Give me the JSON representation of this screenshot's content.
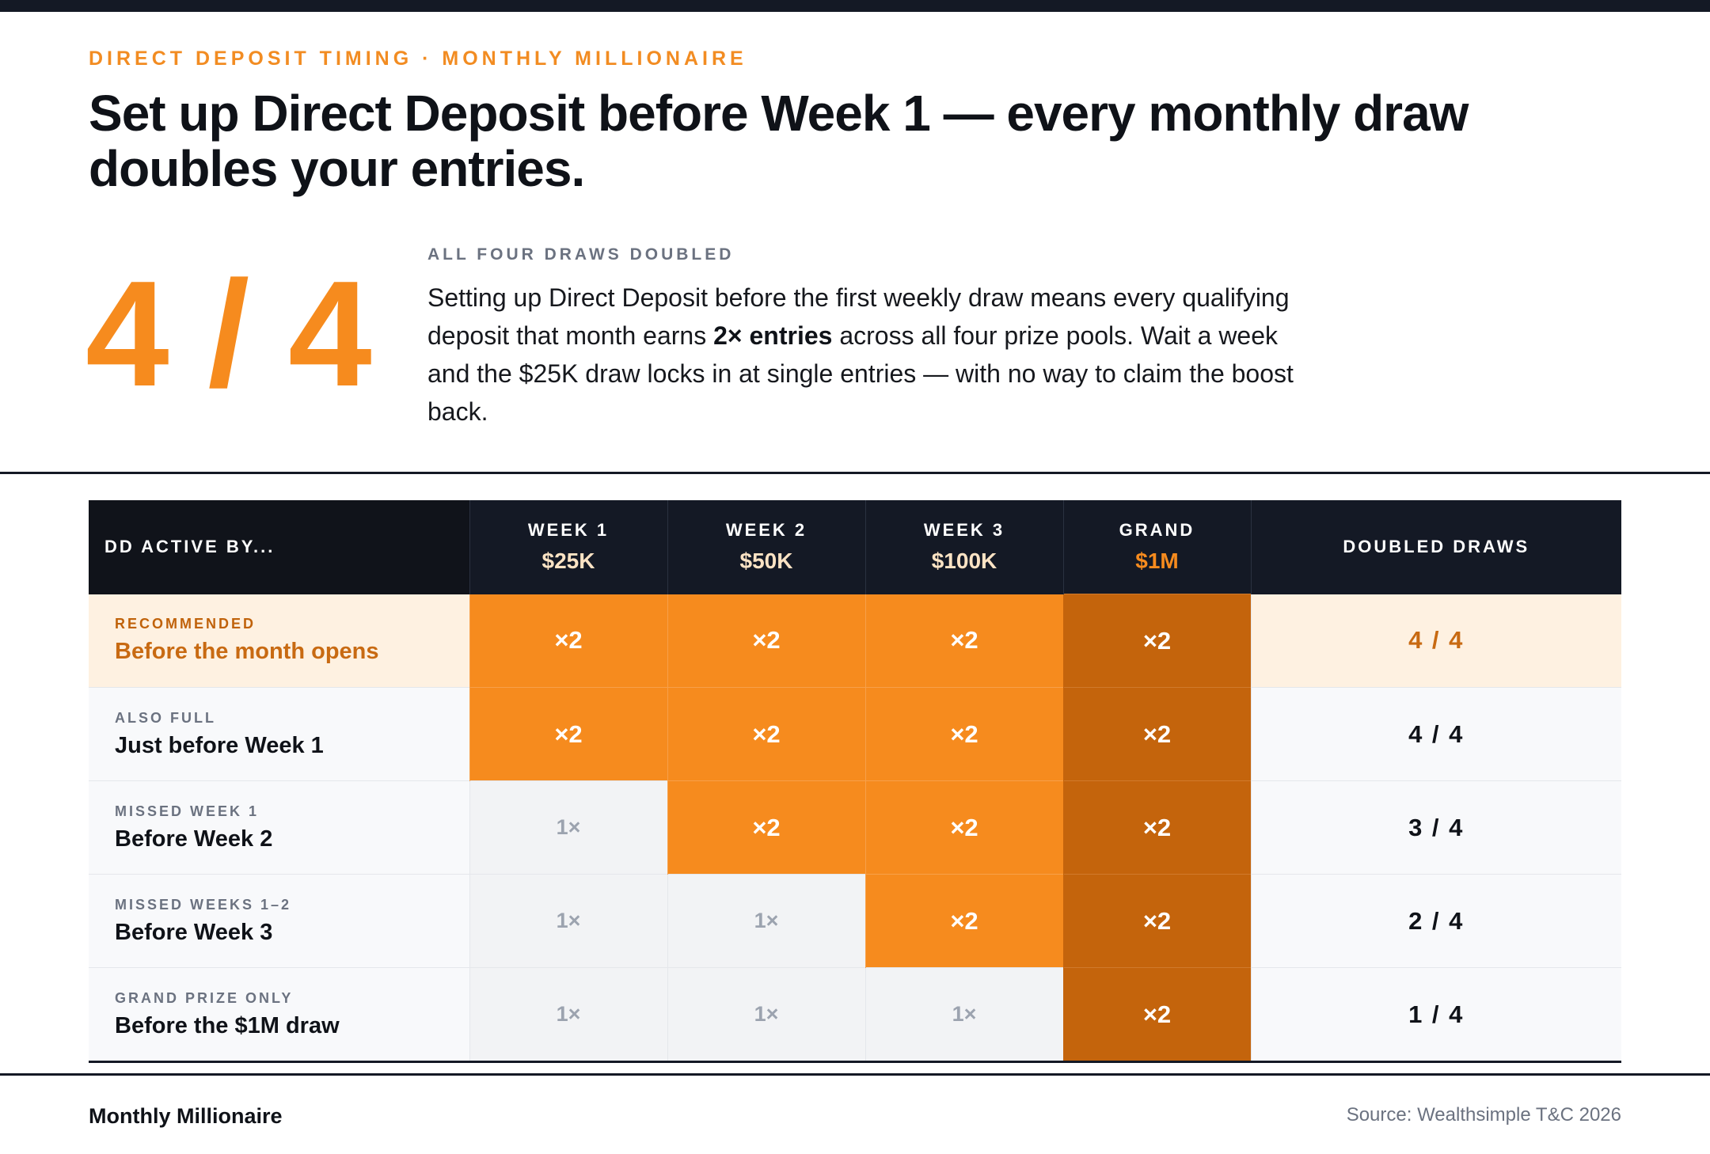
{
  "eyebrow": "DIRECT DEPOSIT TIMING · MONTHLY MILLIONAIRE",
  "headline": "Set up Direct Deposit before Week 1 — every monthly draw doubles your entries.",
  "big_number": "4 / 4",
  "kicker": "ALL FOUR DRAWS DOUBLED",
  "body": {
    "before_bold": "Setting up Direct Deposit before the first weekly draw means every qualifying deposit that month earns ",
    "bold": "2× entries",
    "after_bold": " across all four prize pools. Wait a week and the $25K draw locks in at single entries — with no way to claim the boost back."
  },
  "table": {
    "header": {
      "label_col": "DD ACTIVE BY...",
      "columns": [
        {
          "title": "WEEK 1",
          "prize": "$25K"
        },
        {
          "title": "WEEK 2",
          "prize": "$50K"
        },
        {
          "title": "WEEK 3",
          "prize": "$100K"
        },
        {
          "title": "GRAND",
          "prize": "$1M"
        }
      ],
      "count_col": "DOUBLED DRAWS"
    },
    "rows": [
      {
        "tag": "RECOMMENDED",
        "title": "Before the month opens",
        "cells": [
          "×2",
          "×2",
          "×2",
          "×2"
        ],
        "count": "4 / 4"
      },
      {
        "tag": "ALSO FULL",
        "title": "Just before Week 1",
        "cells": [
          "×2",
          "×2",
          "×2",
          "×2"
        ],
        "count": "4 / 4"
      },
      {
        "tag": "MISSED WEEK 1",
        "title": "Before Week 2",
        "cells": [
          "1×",
          "×2",
          "×2",
          "×2"
        ],
        "count": "3 / 4"
      },
      {
        "tag": "MISSED WEEKS 1–2",
        "title": "Before Week 3",
        "cells": [
          "1×",
          "1×",
          "×2",
          "×2"
        ],
        "count": "2 / 4"
      },
      {
        "tag": "GRAND PRIZE ONLY",
        "title": "Before the $1M draw",
        "cells": [
          "1×",
          "1×",
          "1×",
          "×2"
        ],
        "count": "1 / 4"
      }
    ]
  },
  "footer": {
    "left": "Monthly Millionaire",
    "right": "Source: Wealthsimple T&C 2026"
  },
  "colors": {
    "accent_orange": "#F68B1E",
    "grand_orange": "#C4640C",
    "header_navy": "#141925",
    "recommended_bg": "#FEF1E1"
  }
}
